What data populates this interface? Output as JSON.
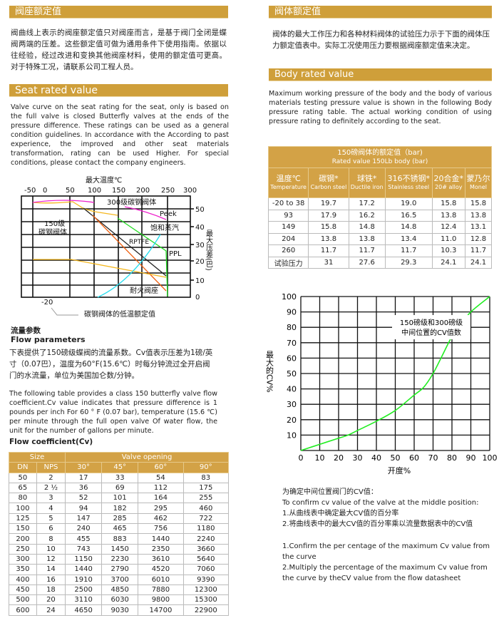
{
  "seat_cn": {
    "title": "阀座额定值",
    "text": "阀曲线上表示的阀座额定值只对阀座而言，是基于阀门全闭是蝶阀两端的压差。这些额定值可做为通用条件下使用指南。依据以往经验，经过改进和变换其他阀座材料，使用的额定值可更高。对于特殊工况，请联系公司工程人员。"
  },
  "seat_en": {
    "title": "Seat rated value",
    "text": "Valve curve on the seat rating for the seat, only is based on the full valve is closed Butterfly valves at the ends of the pressure difference. These ratings can be used as a general condition guidelines. In accordance with the According to past experience, the improved and other seat materials transformation, rating can be used Higher. For special conditions, please contact the company engineers."
  },
  "seat_chart": {
    "top_axis_title": "最大温度℃",
    "top_ticks": [
      "-50",
      "0",
      "50",
      "100",
      "150",
      "200",
      "250",
      "300"
    ],
    "right_axis_title": "最大压差(巴)",
    "right_ticks": [
      "50",
      "40",
      "30",
      "20",
      "10",
      "0"
    ],
    "labels": {
      "c300": "300级碳钢阀体",
      "peek": "Peek",
      "steam": "饱和蒸汽",
      "c150a": "150级",
      "c150b": "碳钢阀体",
      "rptfe": "RPTFE",
      "ppl": "PPL",
      "fire": "耐火阀座",
      "minus20": "-20",
      "lowtemp": "碳钢阀体的低温额定值"
    }
  },
  "flow": {
    "title_cn": "流量参数",
    "title_en": "Flow parameters",
    "text_cn": "下表提供了150磅级蝶阀的流量系数。Cv值表示压差为1磅/英寸（0.07巴），温度为60°F(15.6℃）时每分钟流过全开启阀门的水流量，单位为美国加仑数/分钟。",
    "text_en": "The following table provides a class 150 butterfly valve flow coefficient.Cv value indicates that pressure difference is 1 pounds per inch For 60 ° F (0.07 bar), temperature (15.6 ℃) per minute through the full open valve Of water flow, the unit for the number of gallons per minute."
  },
  "cv_table": {
    "title": "Flow coefficient(Cv)",
    "group_size": "Size",
    "group_opening": "Valve opening",
    "headers": [
      "DN",
      "NPS",
      "30°",
      "45°",
      "60°",
      "90°"
    ],
    "rows": [
      [
        "50",
        "2",
        "17",
        "33",
        "54",
        "83"
      ],
      [
        "65",
        "2 ½",
        "36",
        "69",
        "112",
        "175"
      ],
      [
        "80",
        "3",
        "52",
        "101",
        "164",
        "255"
      ],
      [
        "100",
        "4",
        "94",
        "182",
        "295",
        "460"
      ],
      [
        "125",
        "5",
        "147",
        "285",
        "462",
        "722"
      ],
      [
        "150",
        "6",
        "240",
        "465",
        "756",
        "1180"
      ],
      [
        "200",
        "8",
        "455",
        "883",
        "1440",
        "2240"
      ],
      [
        "250",
        "10",
        "743",
        "1450",
        "2350",
        "3660"
      ],
      [
        "300",
        "12",
        "1150",
        "2230",
        "3610",
        "5640"
      ],
      [
        "350",
        "14",
        "1440",
        "2790",
        "4520",
        "7060"
      ],
      [
        "400",
        "16",
        "1910",
        "3700",
        "6010",
        "9390"
      ],
      [
        "450",
        "18",
        "2500",
        "4850",
        "7880",
        "12300"
      ],
      [
        "500",
        "20",
        "3110",
        "6030",
        "9800",
        "15300"
      ],
      [
        "600",
        "24",
        "4650",
        "9030",
        "14700",
        "22900"
      ]
    ]
  },
  "body_cn": {
    "title": "阀体额定值",
    "text": "阀体的最大工作压力和各种材料阀体的试验压力示于下面的阀体压力额定值表中。实际工况使用压力要根据阀座额定值来决定。"
  },
  "body_en": {
    "title": "Body rated value",
    "text": "Maximum working pressure of the body and the body of various materials testing pressure value is shown in the following Body pressure rating table. The actual working condition of using pressure rating to definitely according to the seat."
  },
  "body_table": {
    "title_cn": "150磅阀体的额定值（bar)",
    "title_en": "Rated value 150Lb body (bar)",
    "headers": [
      {
        "cn": "温度℃",
        "en": "Temperature"
      },
      {
        "cn": "碳钢*",
        "en": "Carbon steel"
      },
      {
        "cn": "球铁*",
        "en": "Ductile iron"
      },
      {
        "cn": "316不锈钢*",
        "en": "Stainless steel"
      },
      {
        "cn": "20合金*",
        "en": "20# alloy"
      },
      {
        "cn": "蒙乃尔",
        "en": "Monel"
      }
    ],
    "rows": [
      [
        "-20 to 38",
        "19.7",
        "17.2",
        "19.0",
        "15.8",
        "15.8"
      ],
      [
        "93",
        "17.9",
        "16.2",
        "16.5",
        "13.8",
        "13.8"
      ],
      [
        "149",
        "15.8",
        "14.8",
        "14.8",
        "12.4",
        "13.1"
      ],
      [
        "204",
        "13.8",
        "13.8",
        "13.4",
        "11.0",
        "12.8"
      ],
      [
        "260",
        "11.7",
        "11.7",
        "11.7",
        "10.3",
        "11.7"
      ],
      [
        "试验压力",
        "31",
        "27.6",
        "29.3",
        "24.1",
        "24.1"
      ]
    ]
  },
  "chart_data": {
    "type": "line",
    "annotation": "150磅级和300磅级\n中间位置的CV值数",
    "annotation_l1": "150磅级和300磅级",
    "annotation_l2": "中间位置的CV值数",
    "xlabel": "开度%",
    "ylabel": "最大的CV%",
    "xlim": [
      0,
      100
    ],
    "ylim": [
      0,
      100
    ],
    "grid": true,
    "x_ticks": [
      "0",
      "10",
      "20",
      "30",
      "40",
      "50",
      "60",
      "70",
      "80",
      "90",
      "100"
    ],
    "y_ticks": [
      "10",
      "20",
      "30",
      "40",
      "50",
      "60",
      "70",
      "80",
      "90",
      "100"
    ],
    "series": [
      {
        "color": "#22ee22",
        "x": [
          0,
          10,
          20,
          25,
          30,
          40,
          50,
          60,
          65,
          70,
          75,
          80,
          85,
          90,
          100
        ],
        "y": [
          0,
          4,
          8,
          10,
          13,
          19,
          26,
          36,
          41,
          50,
          62,
          74,
          82,
          90,
          100
        ]
      }
    ]
  },
  "steps": {
    "cn_title": "为确定中间位置阀门的CV值：",
    "en_title": "To confirm cv value of the valve at the middle position:",
    "cn1": "1.从曲线表中确定最大CV值的百分率",
    "cn2": "2.将曲线表中的最大CV值的百分率乘以流量数据表中的CV值",
    "en1": "1.Confirm the per centage of the maximum Cv value from the curve",
    "en2": "2.Multiply the percentage of the maximum Cv value from the curve by theCV value from the flow datasheet"
  }
}
